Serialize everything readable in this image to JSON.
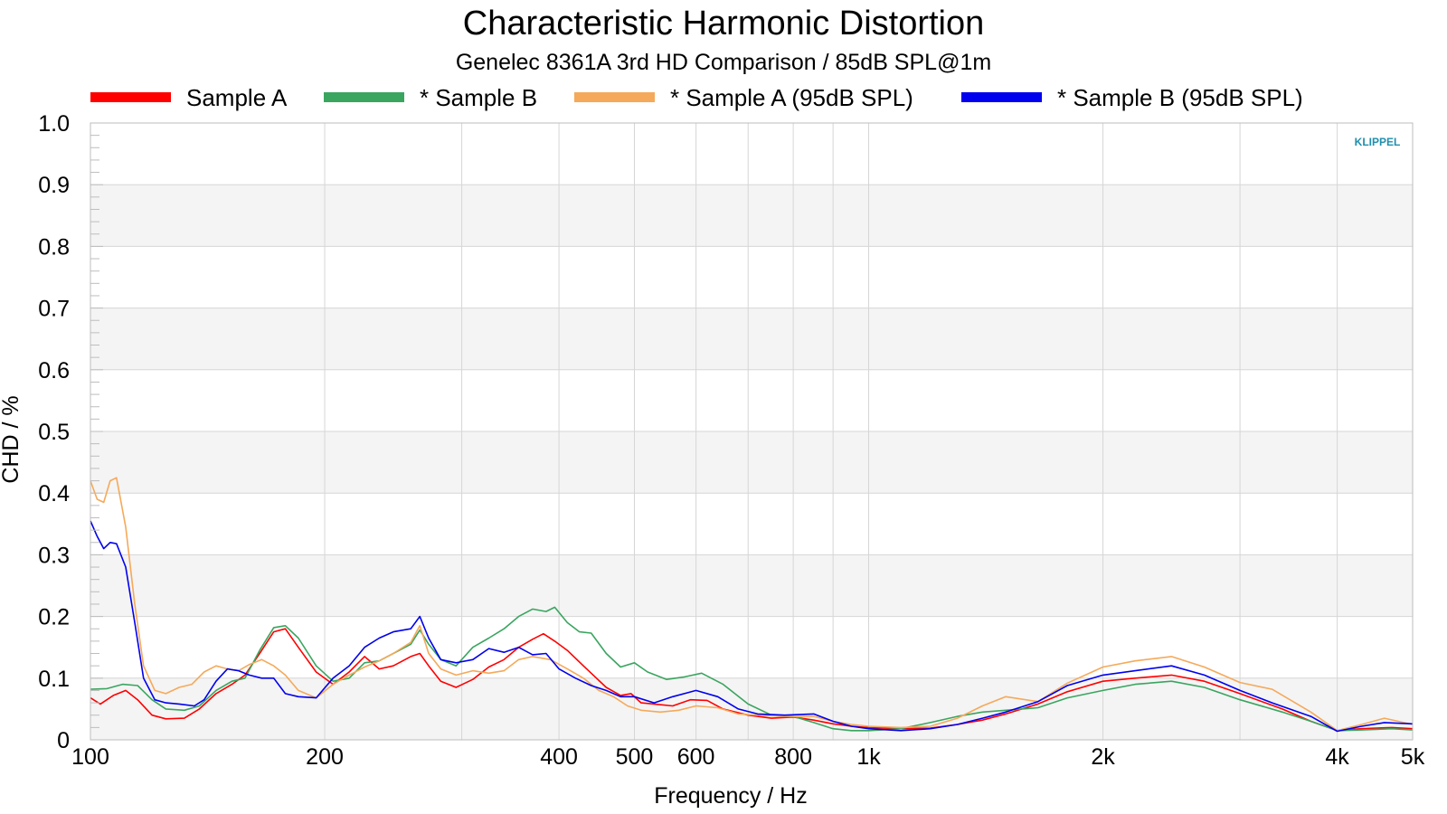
{
  "chart_data": {
    "type": "line",
    "title": "Characteristic Harmonic Distortion",
    "subtitle": "Genelec 8361A 3rd HD Comparison / 85dB SPL@1m",
    "xlabel": "Frequency / Hz",
    "ylabel": "CHD / %",
    "xscale": "log",
    "xlim": [
      100,
      5000
    ],
    "ylim": [
      0,
      1.0
    ],
    "grid": true,
    "legend_position": "top",
    "x_ticks": [
      {
        "value": 100,
        "label": "100"
      },
      {
        "value": 200,
        "label": "200"
      },
      {
        "value": 400,
        "label": "400"
      },
      {
        "value": 500,
        "label": "500"
      },
      {
        "value": 600,
        "label": "600"
      },
      {
        "value": 800,
        "label": "800"
      },
      {
        "value": 1000,
        "label": "1k"
      },
      {
        "value": 2000,
        "label": "2k"
      },
      {
        "value": 4000,
        "label": "4k"
      },
      {
        "value": 5000,
        "label": "5k"
      }
    ],
    "y_ticks": [
      {
        "value": 0,
        "label": "0"
      },
      {
        "value": 0.1,
        "label": "0.1"
      },
      {
        "value": 0.2,
        "label": "0.2"
      },
      {
        "value": 0.3,
        "label": "0.3"
      },
      {
        "value": 0.4,
        "label": "0.4"
      },
      {
        "value": 0.5,
        "label": "0.5"
      },
      {
        "value": 0.6,
        "label": "0.6"
      },
      {
        "value": 0.7,
        "label": "0.7"
      },
      {
        "value": 0.8,
        "label": "0.8"
      },
      {
        "value": 0.9,
        "label": "0.9"
      },
      {
        "value": 1.0,
        "label": "1.0"
      }
    ],
    "watermark": "KLIPPEL",
    "series": [
      {
        "name": "Sample A",
        "color": "#ff0000",
        "points": [
          [
            100,
            0.068
          ],
          [
            103,
            0.058
          ],
          [
            107,
            0.072
          ],
          [
            111,
            0.08
          ],
          [
            115,
            0.065
          ],
          [
            120,
            0.04
          ],
          [
            125,
            0.034
          ],
          [
            132,
            0.035
          ],
          [
            138,
            0.05
          ],
          [
            145,
            0.075
          ],
          [
            152,
            0.09
          ],
          [
            158,
            0.105
          ],
          [
            165,
            0.14
          ],
          [
            172,
            0.175
          ],
          [
            178,
            0.18
          ],
          [
            185,
            0.15
          ],
          [
            195,
            0.11
          ],
          [
            205,
            0.09
          ],
          [
            215,
            0.11
          ],
          [
            225,
            0.135
          ],
          [
            235,
            0.115
          ],
          [
            245,
            0.12
          ],
          [
            258,
            0.135
          ],
          [
            265,
            0.14
          ],
          [
            272,
            0.12
          ],
          [
            282,
            0.095
          ],
          [
            295,
            0.085
          ],
          [
            310,
            0.098
          ],
          [
            325,
            0.118
          ],
          [
            340,
            0.13
          ],
          [
            355,
            0.15
          ],
          [
            370,
            0.163
          ],
          [
            382,
            0.172
          ],
          [
            395,
            0.16
          ],
          [
            410,
            0.145
          ],
          [
            430,
            0.12
          ],
          [
            440,
            0.108
          ],
          [
            460,
            0.085
          ],
          [
            480,
            0.072
          ],
          [
            495,
            0.075
          ],
          [
            510,
            0.06
          ],
          [
            530,
            0.058
          ],
          [
            560,
            0.055
          ],
          [
            590,
            0.065
          ],
          [
            620,
            0.064
          ],
          [
            650,
            0.05
          ],
          [
            700,
            0.04
          ],
          [
            750,
            0.035
          ],
          [
            800,
            0.037
          ],
          [
            850,
            0.032
          ],
          [
            900,
            0.026
          ],
          [
            950,
            0.022
          ],
          [
            1000,
            0.02
          ],
          [
            1100,
            0.018
          ],
          [
            1200,
            0.019
          ],
          [
            1300,
            0.025
          ],
          [
            1400,
            0.032
          ],
          [
            1500,
            0.042
          ],
          [
            1650,
            0.058
          ],
          [
            1800,
            0.078
          ],
          [
            2000,
            0.095
          ],
          [
            2200,
            0.1
          ],
          [
            2450,
            0.105
          ],
          [
            2700,
            0.095
          ],
          [
            3000,
            0.075
          ],
          [
            3400,
            0.05
          ],
          [
            3700,
            0.03
          ],
          [
            4000,
            0.015
          ],
          [
            4300,
            0.018
          ],
          [
            4700,
            0.02
          ],
          [
            5000,
            0.018
          ]
        ]
      },
      {
        "name": "* Sample B",
        "color": "#3aa55f",
        "points": [
          [
            100,
            0.082
          ],
          [
            105,
            0.083
          ],
          [
            110,
            0.09
          ],
          [
            115,
            0.088
          ],
          [
            120,
            0.065
          ],
          [
            125,
            0.05
          ],
          [
            132,
            0.048
          ],
          [
            138,
            0.055
          ],
          [
            145,
            0.08
          ],
          [
            152,
            0.095
          ],
          [
            158,
            0.1
          ],
          [
            165,
            0.145
          ],
          [
            172,
            0.182
          ],
          [
            178,
            0.185
          ],
          [
            185,
            0.165
          ],
          [
            195,
            0.12
          ],
          [
            205,
            0.095
          ],
          [
            215,
            0.1
          ],
          [
            225,
            0.125
          ],
          [
            235,
            0.128
          ],
          [
            245,
            0.14
          ],
          [
            258,
            0.155
          ],
          [
            265,
            0.178
          ],
          [
            272,
            0.155
          ],
          [
            282,
            0.13
          ],
          [
            295,
            0.12
          ],
          [
            310,
            0.15
          ],
          [
            325,
            0.165
          ],
          [
            340,
            0.18
          ],
          [
            355,
            0.2
          ],
          [
            370,
            0.212
          ],
          [
            385,
            0.208
          ],
          [
            395,
            0.215
          ],
          [
            410,
            0.19
          ],
          [
            425,
            0.175
          ],
          [
            440,
            0.173
          ],
          [
            460,
            0.14
          ],
          [
            480,
            0.118
          ],
          [
            500,
            0.125
          ],
          [
            520,
            0.11
          ],
          [
            550,
            0.098
          ],
          [
            580,
            0.102
          ],
          [
            610,
            0.108
          ],
          [
            650,
            0.09
          ],
          [
            700,
            0.058
          ],
          [
            750,
            0.04
          ],
          [
            800,
            0.038
          ],
          [
            850,
            0.028
          ],
          [
            900,
            0.018
          ],
          [
            950,
            0.015
          ],
          [
            1000,
            0.015
          ],
          [
            1100,
            0.018
          ],
          [
            1200,
            0.028
          ],
          [
            1300,
            0.038
          ],
          [
            1400,
            0.045
          ],
          [
            1500,
            0.048
          ],
          [
            1650,
            0.052
          ],
          [
            1800,
            0.068
          ],
          [
            2000,
            0.08
          ],
          [
            2200,
            0.09
          ],
          [
            2450,
            0.095
          ],
          [
            2700,
            0.085
          ],
          [
            3000,
            0.065
          ],
          [
            3400,
            0.045
          ],
          [
            3700,
            0.03
          ],
          [
            4000,
            0.015
          ],
          [
            4300,
            0.016
          ],
          [
            4700,
            0.018
          ],
          [
            5000,
            0.016
          ]
        ]
      },
      {
        "name": "* Sample A (95dB SPL)",
        "color": "#f5a95a",
        "points": [
          [
            100,
            0.42
          ],
          [
            102,
            0.39
          ],
          [
            104,
            0.385
          ],
          [
            106,
            0.42
          ],
          [
            108,
            0.425
          ],
          [
            111,
            0.345
          ],
          [
            114,
            0.22
          ],
          [
            117,
            0.12
          ],
          [
            121,
            0.08
          ],
          [
            125,
            0.075
          ],
          [
            130,
            0.085
          ],
          [
            135,
            0.09
          ],
          [
            140,
            0.11
          ],
          [
            145,
            0.12
          ],
          [
            150,
            0.115
          ],
          [
            155,
            0.112
          ],
          [
            160,
            0.122
          ],
          [
            166,
            0.13
          ],
          [
            172,
            0.12
          ],
          [
            178,
            0.105
          ],
          [
            185,
            0.08
          ],
          [
            195,
            0.068
          ],
          [
            205,
            0.09
          ],
          [
            215,
            0.105
          ],
          [
            225,
            0.118
          ],
          [
            235,
            0.128
          ],
          [
            245,
            0.14
          ],
          [
            258,
            0.158
          ],
          [
            265,
            0.185
          ],
          [
            272,
            0.14
          ],
          [
            282,
            0.115
          ],
          [
            295,
            0.105
          ],
          [
            310,
            0.112
          ],
          [
            325,
            0.108
          ],
          [
            340,
            0.112
          ],
          [
            355,
            0.13
          ],
          [
            370,
            0.135
          ],
          [
            390,
            0.13
          ],
          [
            410,
            0.115
          ],
          [
            430,
            0.1
          ],
          [
            450,
            0.08
          ],
          [
            470,
            0.07
          ],
          [
            490,
            0.055
          ],
          [
            510,
            0.048
          ],
          [
            540,
            0.045
          ],
          [
            570,
            0.048
          ],
          [
            600,
            0.055
          ],
          [
            640,
            0.052
          ],
          [
            680,
            0.042
          ],
          [
            720,
            0.04
          ],
          [
            780,
            0.038
          ],
          [
            850,
            0.038
          ],
          [
            900,
            0.03
          ],
          [
            950,
            0.025
          ],
          [
            1000,
            0.022
          ],
          [
            1100,
            0.02
          ],
          [
            1200,
            0.022
          ],
          [
            1300,
            0.035
          ],
          [
            1400,
            0.055
          ],
          [
            1500,
            0.07
          ],
          [
            1650,
            0.062
          ],
          [
            1800,
            0.092
          ],
          [
            2000,
            0.118
          ],
          [
            2200,
            0.128
          ],
          [
            2450,
            0.135
          ],
          [
            2700,
            0.118
          ],
          [
            3000,
            0.093
          ],
          [
            3300,
            0.082
          ],
          [
            3700,
            0.045
          ],
          [
            4000,
            0.015
          ],
          [
            4300,
            0.025
          ],
          [
            4600,
            0.035
          ],
          [
            5000,
            0.025
          ]
        ]
      },
      {
        "name": "* Sample B (95dB SPL)",
        "color": "#0000ee",
        "points": [
          [
            100,
            0.355
          ],
          [
            102,
            0.33
          ],
          [
            104,
            0.31
          ],
          [
            106,
            0.32
          ],
          [
            108,
            0.318
          ],
          [
            111,
            0.28
          ],
          [
            114,
            0.19
          ],
          [
            117,
            0.1
          ],
          [
            121,
            0.065
          ],
          [
            125,
            0.06
          ],
          [
            130,
            0.058
          ],
          [
            136,
            0.055
          ],
          [
            140,
            0.065
          ],
          [
            145,
            0.095
          ],
          [
            150,
            0.115
          ],
          [
            155,
            0.112
          ],
          [
            160,
            0.105
          ],
          [
            166,
            0.1
          ],
          [
            172,
            0.1
          ],
          [
            178,
            0.075
          ],
          [
            185,
            0.07
          ],
          [
            195,
            0.068
          ],
          [
            205,
            0.1
          ],
          [
            215,
            0.12
          ],
          [
            225,
            0.15
          ],
          [
            235,
            0.165
          ],
          [
            245,
            0.175
          ],
          [
            258,
            0.18
          ],
          [
            265,
            0.2
          ],
          [
            272,
            0.165
          ],
          [
            282,
            0.13
          ],
          [
            295,
            0.125
          ],
          [
            310,
            0.13
          ],
          [
            325,
            0.148
          ],
          [
            340,
            0.142
          ],
          [
            355,
            0.15
          ],
          [
            370,
            0.138
          ],
          [
            385,
            0.14
          ],
          [
            400,
            0.115
          ],
          [
            420,
            0.1
          ],
          [
            440,
            0.088
          ],
          [
            460,
            0.08
          ],
          [
            480,
            0.07
          ],
          [
            500,
            0.07
          ],
          [
            530,
            0.06
          ],
          [
            560,
            0.07
          ],
          [
            600,
            0.08
          ],
          [
            640,
            0.07
          ],
          [
            680,
            0.05
          ],
          [
            720,
            0.042
          ],
          [
            780,
            0.04
          ],
          [
            850,
            0.042
          ],
          [
            900,
            0.03
          ],
          [
            950,
            0.022
          ],
          [
            1000,
            0.018
          ],
          [
            1100,
            0.015
          ],
          [
            1200,
            0.018
          ],
          [
            1300,
            0.025
          ],
          [
            1400,
            0.035
          ],
          [
            1500,
            0.045
          ],
          [
            1650,
            0.062
          ],
          [
            1800,
            0.088
          ],
          [
            2000,
            0.105
          ],
          [
            2200,
            0.112
          ],
          [
            2450,
            0.12
          ],
          [
            2700,
            0.105
          ],
          [
            3000,
            0.08
          ],
          [
            3300,
            0.06
          ],
          [
            3700,
            0.038
          ],
          [
            4000,
            0.014
          ],
          [
            4300,
            0.022
          ],
          [
            4600,
            0.028
          ],
          [
            5000,
            0.026
          ]
        ]
      }
    ]
  }
}
